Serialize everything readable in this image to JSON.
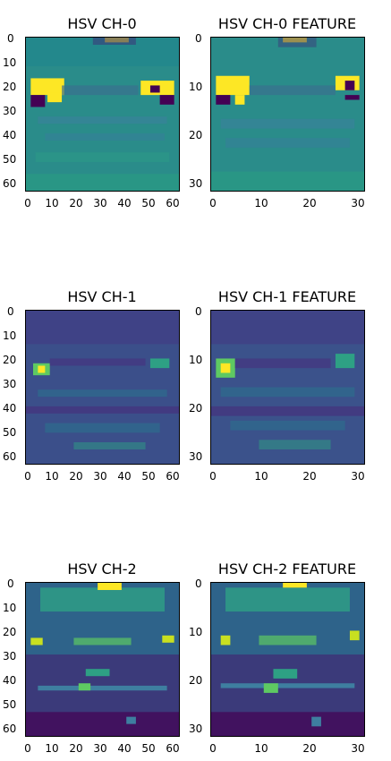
{
  "panels": [
    {
      "id": "ch0",
      "title": "HSV CH-0",
      "size": 64,
      "xticks": [
        0,
        10,
        20,
        30,
        40,
        50,
        60
      ],
      "yticks": [
        0,
        10,
        20,
        30,
        40,
        50,
        60
      ]
    },
    {
      "id": "ch0f",
      "title": "HSV CH-0 FEATURE",
      "size": 32,
      "xticks": [
        0,
        10,
        20,
        30
      ],
      "yticks": [
        0,
        10,
        20,
        30
      ]
    },
    {
      "id": "ch1",
      "title": "HSV CH-1",
      "size": 64,
      "xticks": [
        0,
        10,
        20,
        30,
        40,
        50,
        60
      ],
      "yticks": [
        0,
        10,
        20,
        30,
        40,
        50,
        60
      ]
    },
    {
      "id": "ch1f",
      "title": "HSV CH-1 FEATURE",
      "size": 32,
      "xticks": [
        0,
        10,
        20,
        30
      ],
      "yticks": [
        0,
        10,
        20,
        30
      ]
    },
    {
      "id": "ch2",
      "title": "HSV CH-2",
      "size": 64,
      "xticks": [
        0,
        10,
        20,
        30,
        40,
        50,
        60
      ],
      "yticks": [
        0,
        10,
        20,
        30,
        40,
        50,
        60
      ]
    },
    {
      "id": "ch2f",
      "title": "HSV CH-2 FEATURE",
      "size": 32,
      "xticks": [
        0,
        10,
        20,
        30
      ],
      "yticks": [
        0,
        10,
        20,
        30
      ]
    }
  ],
  "colors": {
    "viridis_dark": "#440154",
    "viridis_blue": "#3b528b",
    "viridis_teal": "#21918c",
    "viridis_green": "#5ec962",
    "viridis_yellow": "#fde725"
  }
}
